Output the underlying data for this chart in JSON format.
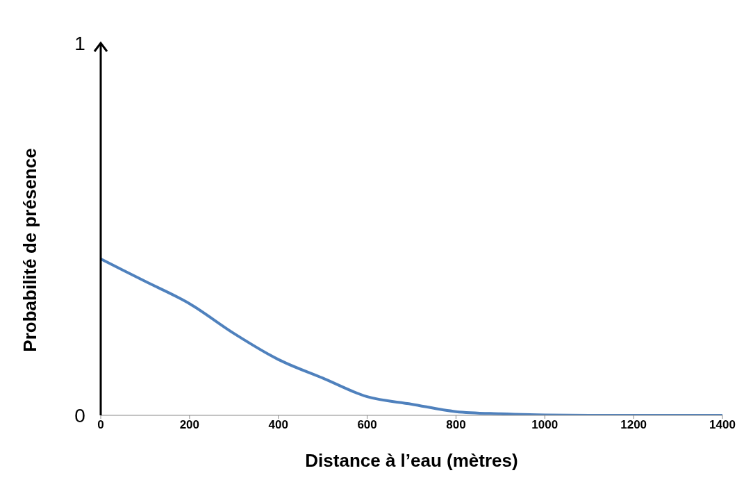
{
  "chart_data": {
    "type": "line",
    "xlabel": "Distance à l’eau (mètres)",
    "ylabel": "Probabilité de présence",
    "x": [
      0,
      100,
      200,
      300,
      400,
      500,
      600,
      700,
      800,
      900,
      1000,
      1100,
      1200,
      1300,
      1400
    ],
    "series": [
      {
        "color": "#4f81bd",
        "values": [
          0.42,
          0.36,
          0.3,
          0.22,
          0.15,
          0.1,
          0.05,
          0.03,
          0.01,
          0.004,
          0.001,
          0,
          0,
          0,
          0
        ]
      }
    ],
    "xlim": [
      0,
      1400
    ],
    "xticks": [
      0,
      200,
      400,
      600,
      800,
      1000,
      1200,
      1400
    ],
    "ylim": [
      0,
      1
    ],
    "yticks": [
      0,
      1
    ],
    "grid": false,
    "marker": "none",
    "line_style": "solid"
  }
}
